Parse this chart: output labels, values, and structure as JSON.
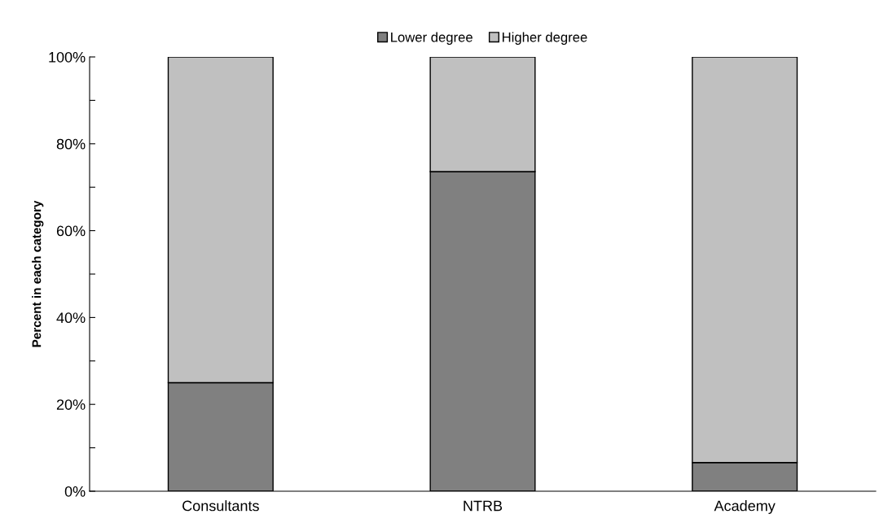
{
  "chart_data": {
    "type": "bar",
    "stacked": true,
    "ylabel": "Percent in each category",
    "categories": [
      "Consultants",
      "NTRB",
      "Academy"
    ],
    "series": [
      {
        "name": "Lower degree",
        "color": "#808080",
        "values": [
          25,
          73.6,
          6.6
        ]
      },
      {
        "name": "Higher degree",
        "color": "#c0c0c0",
        "values": [
          75,
          26.4,
          93.4
        ]
      }
    ],
    "ylim": [
      0,
      100
    ],
    "yticks": [
      {
        "value": 0,
        "label": "0%"
      },
      {
        "value": 10,
        "label": null
      },
      {
        "value": 20,
        "label": "20%"
      },
      {
        "value": 30,
        "label": null
      },
      {
        "value": 40,
        "label": "40%"
      },
      {
        "value": 50,
        "label": null
      },
      {
        "value": 60,
        "label": "60%"
      },
      {
        "value": 70,
        "label": null
      },
      {
        "value": 80,
        "label": "80%"
      },
      {
        "value": 90,
        "label": null
      },
      {
        "value": 100,
        "label": "100%"
      }
    ],
    "grid": false,
    "legend": "top"
  }
}
